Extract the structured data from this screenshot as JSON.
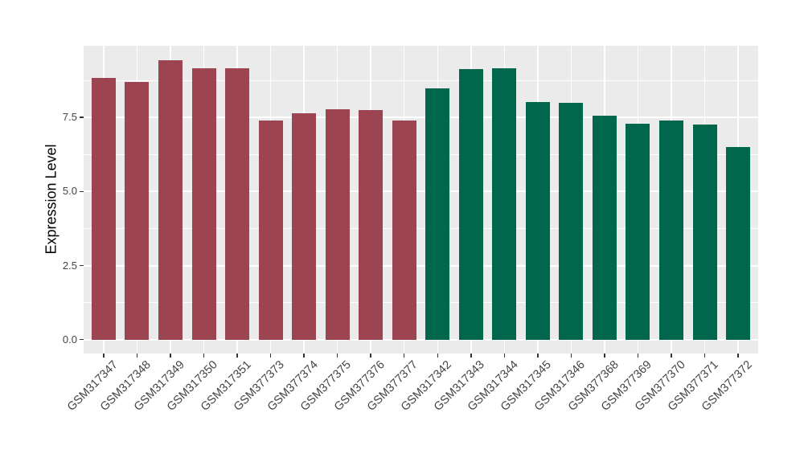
{
  "figure": {
    "background": "#FFFFFF"
  },
  "chart_data": {
    "type": "bar",
    "title": "",
    "xlabel": "",
    "ylabel": "Expression Level",
    "categories": [
      "GSM317347",
      "GSM317348",
      "GSM317349",
      "GSM317350",
      "GSM317351",
      "GSM377373",
      "GSM377374",
      "GSM377375",
      "GSM377376",
      "GSM377377",
      "GSM317342",
      "GSM317343",
      "GSM317344",
      "GSM317345",
      "GSM317346",
      "GSM377368",
      "GSM377369",
      "GSM377370",
      "GSM377371",
      "GSM377372"
    ],
    "values": [
      8.84,
      8.71,
      9.44,
      9.17,
      9.16,
      7.41,
      7.65,
      7.79,
      7.76,
      7.4,
      8.48,
      9.12,
      9.15,
      8.01,
      7.99,
      7.55,
      7.28,
      7.4,
      7.25,
      6.51
    ],
    "bar_groups": [
      "left",
      "left",
      "left",
      "left",
      "left",
      "left",
      "left",
      "left",
      "left",
      "left",
      "right",
      "right",
      "right",
      "right",
      "right",
      "right",
      "right",
      "right",
      "right",
      "right"
    ],
    "group_colors": {
      "left": "#9C4451",
      "right": "#00664C"
    },
    "ylim": [
      -0.47,
      9.92
    ],
    "yticks": [
      0,
      2.5,
      5,
      7.5
    ],
    "ytick_labels": [
      "0.0",
      "2.5",
      "5.0",
      "7.5"
    ],
    "yticks_minor": [
      1.25,
      3.75,
      6.25,
      8.75
    ],
    "grid": true,
    "legend": "none",
    "panel_bg": "#EBEBEB",
    "grid_color": "#FFFFFF",
    "tick_label_color": "#444444",
    "axis_title_color": "#000000"
  }
}
